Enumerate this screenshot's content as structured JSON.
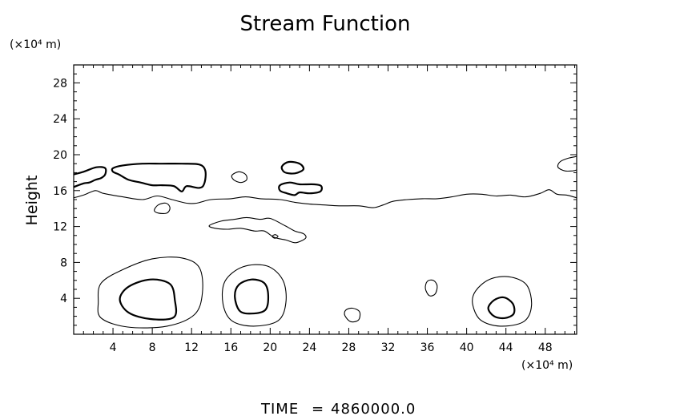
{
  "chart_data": {
    "type": "contour",
    "title": "Stream Function",
    "ylabel": "Height",
    "xlabel": "",
    "x_unit": "(×10⁴ m)",
    "y_unit": "(×10⁴ m)",
    "xlim": [
      0,
      51.2
    ],
    "ylim": [
      0,
      30
    ],
    "x_ticks": [
      4,
      8,
      12,
      16,
      20,
      24,
      28,
      32,
      36,
      40,
      44,
      48
    ],
    "y_ticks": [
      4,
      8,
      12,
      16,
      20,
      24,
      28
    ],
    "x_minor_step": 1,
    "y_minor_step": 1,
    "grid": false,
    "contours": [
      {
        "weight": "thin",
        "closed": true,
        "points": [
          [
            2.8,
            1.8
          ],
          [
            5.5,
            0.8
          ],
          [
            9.5,
            0.9
          ],
          [
            12.3,
            2.2
          ],
          [
            13.1,
            4.6
          ],
          [
            12.8,
            7.4
          ],
          [
            11,
            8.5
          ],
          [
            8,
            8.4
          ],
          [
            5,
            7.2
          ],
          [
            2.8,
            5.7
          ],
          [
            2.5,
            3.6
          ]
        ]
      },
      {
        "weight": "thick",
        "closed": true,
        "points": [
          [
            4.7,
            3.9
          ],
          [
            5.6,
            2.4
          ],
          [
            7.8,
            1.7
          ],
          [
            10.2,
            1.9
          ],
          [
            10.3,
            3.8
          ],
          [
            9.8,
            5.6
          ],
          [
            7.8,
            6.1
          ],
          [
            5.6,
            5.3
          ]
        ]
      },
      {
        "weight": "thin",
        "closed": true,
        "points": [
          [
            15.2,
            3.4
          ],
          [
            16.1,
            1.5
          ],
          [
            18.3,
            0.9
          ],
          [
            20.8,
            1.5
          ],
          [
            21.6,
            3.5
          ],
          [
            21.3,
            6
          ],
          [
            19.7,
            7.6
          ],
          [
            17.2,
            7.5
          ],
          [
            15.4,
            5.9
          ]
        ]
      },
      {
        "weight": "thick",
        "closed": true,
        "points": [
          [
            16.4,
            4.2
          ],
          [
            16.9,
            2.6
          ],
          [
            18.1,
            2.3
          ],
          [
            19.5,
            2.7
          ],
          [
            19.8,
            4.3
          ],
          [
            19.4,
            5.7
          ],
          [
            18.1,
            6.1
          ],
          [
            16.8,
            5.5
          ]
        ]
      },
      {
        "weight": "thin",
        "closed": true,
        "points": [
          [
            27.6,
            2.1
          ],
          [
            28.2,
            1.4
          ],
          [
            29,
            1.6
          ],
          [
            29.1,
            2.5
          ],
          [
            28.4,
            2.9
          ],
          [
            27.7,
            2.7
          ]
        ]
      },
      {
        "weight": "thin",
        "closed": true,
        "points": [
          [
            35.8,
            5.1
          ],
          [
            36.2,
            4.3
          ],
          [
            36.8,
            4.5
          ],
          [
            37,
            5.4
          ],
          [
            36.6,
            6
          ],
          [
            36,
            5.9
          ]
        ]
      },
      {
        "weight": "thin",
        "closed": true,
        "points": [
          [
            40.6,
            3.4
          ],
          [
            41.4,
            1.6
          ],
          [
            43.4,
            0.9
          ],
          [
            45.8,
            1.4
          ],
          [
            46.6,
            3.2
          ],
          [
            46.1,
            5.5
          ],
          [
            44.3,
            6.4
          ],
          [
            42.3,
            6.1
          ],
          [
            40.9,
            4.8
          ]
        ]
      },
      {
        "weight": "thick",
        "closed": true,
        "points": [
          [
            42.2,
            2.9
          ],
          [
            42.8,
            2
          ],
          [
            43.9,
            1.8
          ],
          [
            44.8,
            2.3
          ],
          [
            44.7,
            3.4
          ],
          [
            43.8,
            4.1
          ],
          [
            42.8,
            3.8
          ]
        ]
      },
      {
        "weight": "thin",
        "closed": false,
        "points": [
          [
            0,
            15.2
          ],
          [
            1,
            15.5
          ],
          [
            2.2,
            16
          ],
          [
            3,
            15.7
          ],
          [
            5,
            15.3
          ],
          [
            7,
            15
          ],
          [
            8.5,
            15.4
          ],
          [
            10,
            15
          ],
          [
            11.5,
            14.6
          ],
          [
            12.5,
            14.6
          ],
          [
            14,
            15
          ],
          [
            16,
            15.1
          ],
          [
            17.5,
            15.3
          ],
          [
            19,
            15.1
          ],
          [
            21,
            15
          ],
          [
            22.5,
            14.7
          ],
          [
            24,
            14.5
          ],
          [
            25.5,
            14.4
          ],
          [
            27,
            14.3
          ],
          [
            29,
            14.3
          ],
          [
            30.5,
            14.1
          ],
          [
            31.5,
            14.4
          ],
          [
            32.5,
            14.8
          ],
          [
            34,
            15
          ],
          [
            35.5,
            15.1
          ],
          [
            37,
            15.1
          ],
          [
            38.5,
            15.3
          ],
          [
            40,
            15.6
          ],
          [
            41.5,
            15.6
          ],
          [
            43,
            15.4
          ],
          [
            44.5,
            15.5
          ],
          [
            46,
            15.3
          ],
          [
            47.5,
            15.7
          ],
          [
            48.4,
            16.1
          ],
          [
            49.2,
            15.6
          ],
          [
            50.2,
            15.5
          ],
          [
            51.2,
            15.2
          ]
        ]
      },
      {
        "weight": "thin",
        "closed": true,
        "points": [
          [
            8.2,
            13.8
          ],
          [
            8.6,
            14.4
          ],
          [
            9.4,
            14.6
          ],
          [
            9.8,
            14.1
          ],
          [
            9.5,
            13.5
          ],
          [
            8.6,
            13.5
          ]
        ]
      },
      {
        "weight": "thick",
        "closed": false,
        "points": [
          [
            0,
            17.8
          ],
          [
            1,
            18.1
          ],
          [
            2.3,
            18.6
          ],
          [
            3.2,
            18.5
          ],
          [
            3.2,
            17.8
          ],
          [
            2.8,
            17.4
          ],
          [
            2.2,
            17.2
          ],
          [
            1.6,
            16.9
          ],
          [
            1,
            16.8
          ],
          [
            0,
            16.4
          ]
        ]
      },
      {
        "weight": "thick",
        "closed": true,
        "points": [
          [
            4,
            18.5
          ],
          [
            5,
            18.8
          ],
          [
            7,
            19
          ],
          [
            9,
            19
          ],
          [
            11,
            19
          ],
          [
            12.8,
            18.9
          ],
          [
            13.4,
            18.2
          ],
          [
            13.3,
            16.8
          ],
          [
            12.8,
            16.3
          ],
          [
            11.5,
            16.5
          ],
          [
            11,
            15.9
          ],
          [
            10.2,
            16.5
          ],
          [
            9,
            16.6
          ],
          [
            8,
            16.6
          ],
          [
            6.8,
            16.9
          ],
          [
            5.6,
            17.2
          ],
          [
            4.6,
            17.8
          ],
          [
            4,
            18.1
          ]
        ]
      },
      {
        "weight": "thin",
        "closed": true,
        "points": [
          [
            16.1,
            17.7
          ],
          [
            16.8,
            18.1
          ],
          [
            17.5,
            17.8
          ],
          [
            17.6,
            17.2
          ],
          [
            17,
            16.9
          ],
          [
            16.3,
            17.2
          ]
        ]
      },
      {
        "weight": "thick",
        "closed": true,
        "points": [
          [
            21.2,
            18.7
          ],
          [
            21.9,
            19.2
          ],
          [
            23,
            19
          ],
          [
            23.4,
            18.4
          ],
          [
            22.8,
            18
          ],
          [
            22.1,
            17.9
          ],
          [
            21.4,
            18.1
          ]
        ]
      },
      {
        "weight": "thick",
        "closed": true,
        "points": [
          [
            21,
            16.6
          ],
          [
            22,
            16.9
          ],
          [
            23,
            16.7
          ],
          [
            24.5,
            16.7
          ],
          [
            25.2,
            16.5
          ],
          [
            25.1,
            15.9
          ],
          [
            24,
            15.7
          ],
          [
            23,
            15.8
          ],
          [
            22.5,
            15.5
          ],
          [
            21.7,
            15.7
          ],
          [
            21,
            16
          ]
        ]
      },
      {
        "weight": "thin",
        "closed": true,
        "points": [
          [
            13.8,
            12.1
          ],
          [
            15,
            12.6
          ],
          [
            16.4,
            12.8
          ],
          [
            17.6,
            13
          ],
          [
            19,
            12.8
          ],
          [
            20,
            12.9
          ],
          [
            21.5,
            12.1
          ],
          [
            22.5,
            11.5
          ],
          [
            23.4,
            11.2
          ],
          [
            23.6,
            10.7
          ],
          [
            22.6,
            10.2
          ],
          [
            21.6,
            10.5
          ],
          [
            20.4,
            10.8
          ],
          [
            19.4,
            11.5
          ],
          [
            18.4,
            11.5
          ],
          [
            17,
            11.8
          ],
          [
            15.6,
            11.7
          ],
          [
            14.4,
            11.8
          ]
        ]
      },
      {
        "weight": "thin",
        "closed": true,
        "points": [
          [
            20.2,
            10.9
          ],
          [
            20.5,
            11.1
          ],
          [
            20.8,
            10.9
          ],
          [
            20.5,
            10.7
          ]
        ]
      },
      {
        "weight": "thin",
        "closed": false,
        "points": [
          [
            51.2,
            19.8
          ],
          [
            50.3,
            19.6
          ],
          [
            49.5,
            19.2
          ],
          [
            49.3,
            18.6
          ],
          [
            50,
            18.2
          ],
          [
            50.8,
            18.2
          ],
          [
            51.2,
            18.3
          ]
        ]
      }
    ]
  },
  "footer": {
    "time_label": "TIME",
    "equals": "=",
    "time_value": "4860000.0"
  }
}
